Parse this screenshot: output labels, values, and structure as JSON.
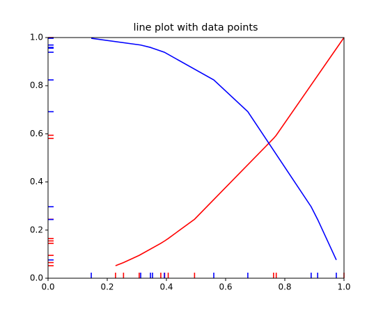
{
  "chart_data": {
    "type": "line",
    "title": "line plot with data points",
    "series": [
      {
        "color": "#ff0000",
        "x": [
          0.228,
          0.255,
          0.308,
          0.381,
          0.394,
          0.406,
          0.495,
          0.762,
          0.771,
          1.0
        ],
        "values": [
          0.052,
          0.065,
          0.095,
          0.145,
          0.155,
          0.165,
          0.245,
          0.581,
          0.594,
          1.0
        ]
      },
      {
        "color": "#0000ff",
        "x": [
          0.146,
          0.313,
          0.346,
          0.353,
          0.393,
          0.56,
          0.675,
          0.889,
          0.911,
          0.974
        ],
        "values": [
          0.997,
          0.969,
          0.959,
          0.956,
          0.939,
          0.824,
          0.692,
          0.297,
          0.244,
          0.076
        ]
      }
    ],
    "rug": true,
    "xlim": [
      0,
      1
    ],
    "ylim": [
      0,
      1
    ],
    "xticks": [
      {
        "value": 0,
        "label": "0.0"
      },
      0.2,
      0.4,
      0.6,
      0.8,
      {
        "value": 1,
        "label": "1.0"
      }
    ],
    "yticks": [
      {
        "value": 0,
        "label": "0.0"
      },
      0.2,
      0.4,
      0.6,
      0.8,
      {
        "value": 1,
        "label": "1.0"
      }
    ],
    "grid": false
  }
}
